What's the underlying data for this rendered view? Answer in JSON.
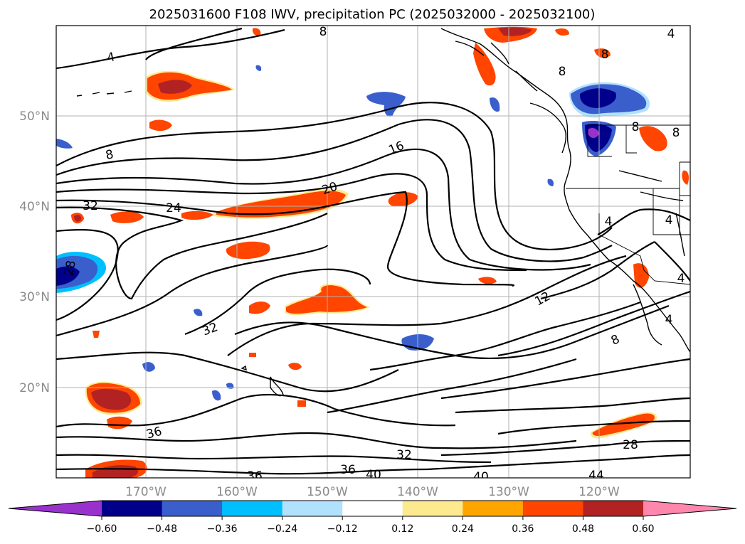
{
  "title": "2025031600 F108 IWV, precipitation PC (2025032000 - 2025032100)",
  "lat_labels": [
    "50°N",
    "40°N",
    "30°N",
    "20°N"
  ],
  "lon_labels": [
    "170°W",
    "160°W",
    "150°W",
    "140°W",
    "130°W",
    "120°W"
  ],
  "colorbar": {
    "ticks": [
      "−0.60",
      "−0.48",
      "−0.36",
      "−0.24",
      "−0.12",
      "0.12",
      "0.24",
      "0.36",
      "0.48",
      "0.60"
    ],
    "colors": [
      "#9932cc",
      "#00008b",
      "#3a5fcd",
      "#00bfff",
      "#b0e2ff",
      "#ffffff",
      "#fde98e",
      "#ffa500",
      "#ff4500",
      "#b22222",
      "#ff87ad"
    ]
  },
  "contour_labels": [
    "4",
    "8",
    "8",
    "8",
    "8",
    "8",
    "16",
    "20",
    "24",
    "32",
    "32",
    "28",
    "12",
    "8",
    "4",
    "4",
    "4",
    "4",
    "4",
    "8",
    "36",
    "36",
    "36",
    "40",
    "32",
    "40",
    "44",
    "28"
  ]
}
